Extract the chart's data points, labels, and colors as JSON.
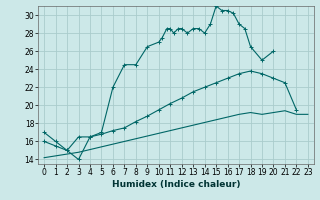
{
  "xlabel": "Humidex (Indice chaleur)",
  "xlim": [
    -0.5,
    23.5
  ],
  "ylim": [
    13.5,
    31.0
  ],
  "xticks": [
    0,
    1,
    2,
    3,
    4,
    5,
    6,
    7,
    8,
    9,
    10,
    11,
    12,
    13,
    14,
    15,
    16,
    17,
    18,
    19,
    20,
    21,
    22,
    23
  ],
  "yticks": [
    14,
    16,
    18,
    20,
    22,
    24,
    26,
    28,
    30
  ],
  "background_color": "#cce8e8",
  "grid_color": "#aacccc",
  "line_color": "#006666",
  "line1_x": [
    0,
    1,
    2,
    3,
    4,
    5,
    6,
    7,
    8,
    9,
    10,
    10.3,
    10.7,
    11,
    11.3,
    11.7,
    12,
    12.5,
    13,
    13.5,
    14,
    14.5,
    15,
    15.5,
    16,
    16.5,
    17,
    17.5,
    18,
    19,
    20
  ],
  "line1_y": [
    17.0,
    16.0,
    15.0,
    14.0,
    16.5,
    17.0,
    22.0,
    24.5,
    24.5,
    26.5,
    27.0,
    27.5,
    28.5,
    28.5,
    28.0,
    28.5,
    28.5,
    28.0,
    28.5,
    28.5,
    28.0,
    29.0,
    31.0,
    30.5,
    30.5,
    30.2,
    29.0,
    28.5,
    26.5,
    25.0,
    26.0
  ],
  "line2_x": [
    0,
    1,
    2,
    3,
    4,
    5,
    6,
    7,
    8,
    9,
    10,
    11,
    12,
    13,
    14,
    15,
    16,
    17,
    18,
    19,
    20,
    21,
    22
  ],
  "line2_y": [
    16.0,
    15.5,
    15.0,
    16.5,
    16.5,
    16.8,
    17.2,
    17.5,
    18.2,
    18.8,
    19.5,
    20.2,
    20.8,
    21.5,
    22.0,
    22.5,
    23.0,
    23.5,
    23.8,
    23.5,
    23.0,
    22.5,
    19.5
  ],
  "line3_x": [
    0,
    1,
    2,
    3,
    4,
    5,
    6,
    7,
    8,
    9,
    10,
    11,
    12,
    13,
    14,
    15,
    16,
    17,
    18,
    19,
    20,
    21,
    22,
    23
  ],
  "line3_y": [
    14.2,
    14.4,
    14.6,
    14.8,
    15.1,
    15.4,
    15.7,
    16.0,
    16.3,
    16.6,
    16.9,
    17.2,
    17.5,
    17.8,
    18.1,
    18.4,
    18.7,
    19.0,
    19.2,
    19.0,
    19.2,
    19.4,
    19.0,
    19.0
  ]
}
